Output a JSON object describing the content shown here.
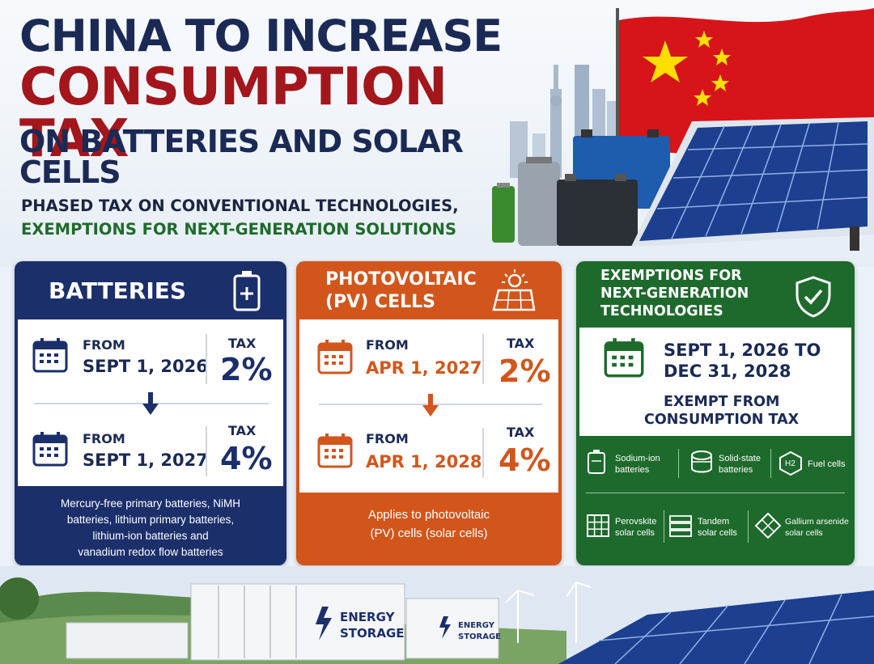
{
  "title": {
    "line1": "CHINA TO INCREASE",
    "line2": "CONSUMPTION TAX",
    "line3": "ON BATTERIES AND SOLAR CELLS"
  },
  "subtitle": {
    "line1": "PHASED TAX ON CONVENTIONAL TECHNOLOGIES,",
    "line2": "EXEMPTIONS FOR NEXT-GENERATION SOLUTIONS"
  },
  "batteries": {
    "title": "BATTERIES",
    "icon": "battery-plus-icon",
    "phase1": {
      "from_label": "FROM",
      "date": "SEPT 1, 2026",
      "tax_label": "TAX",
      "tax": "2%"
    },
    "phase2": {
      "from_label": "FROM",
      "date": "SEPT 1, 2027",
      "tax_label": "TAX",
      "tax": "4%"
    },
    "footer": [
      "Mercury-free primary batteries, NiMH",
      "batteries, lithium primary batteries,",
      "lithium-ion batteries and",
      "vanadium redox flow batteries"
    ]
  },
  "pv": {
    "title_line1": "PHOTOVOLTAIC",
    "title_line2": "(PV) CELLS",
    "icon": "solar-panel-sun-icon",
    "phase1": {
      "from_label": "FROM",
      "date": "APR 1, 2027",
      "tax_label": "TAX",
      "tax": "2%"
    },
    "phase2": {
      "from_label": "FROM",
      "date": "APR 1, 2028",
      "tax_label": "TAX",
      "tax": "4%"
    },
    "footer": [
      "Applies to photovoltaic",
      "(PV) cells (solar cells)"
    ]
  },
  "exemptions": {
    "title_line1": "EXEMPTIONS FOR",
    "title_line2": "NEXT-GENERATION",
    "title_line3": "TECHNOLOGIES",
    "icon": "shield-check-icon",
    "period_line1": "SEPT 1, 2026 TO",
    "period_line2": "DEC 31, 2028",
    "status_line1": "EXEMPT FROM",
    "status_line2": "CONSUMPTION TAX",
    "items": [
      {
        "l1": "Sodium-ion",
        "l2": "batteries",
        "icon": "sodium-battery-icon"
      },
      {
        "l1": "Solid-state",
        "l2": "batteries",
        "icon": "solid-state-battery-icon"
      },
      {
        "l1": "Fuel cells",
        "l2": "",
        "icon": "hydrogen-icon"
      },
      {
        "l1": "Perovskite",
        "l2": "solar cells",
        "icon": "perovskite-panel-icon"
      },
      {
        "l1": "Tandem",
        "l2": "solar cells",
        "icon": "tandem-cell-icon"
      },
      {
        "l1": "Gallium arsenide",
        "l2": "solar cells",
        "icon": "gallium-arsenide-icon"
      }
    ],
    "h2_label": "H2"
  },
  "scene": {
    "storage_label_line1": "ENERGY",
    "storage_label_line2": "STORAGE",
    "storage_label_small_line1": "ENERGY",
    "storage_label_small_line2": "STORAGE"
  },
  "colors": {
    "navy": "#1b2f6b",
    "red": "#a3161c",
    "orange": "#d2561c",
    "green": "#1e6a2d"
  }
}
